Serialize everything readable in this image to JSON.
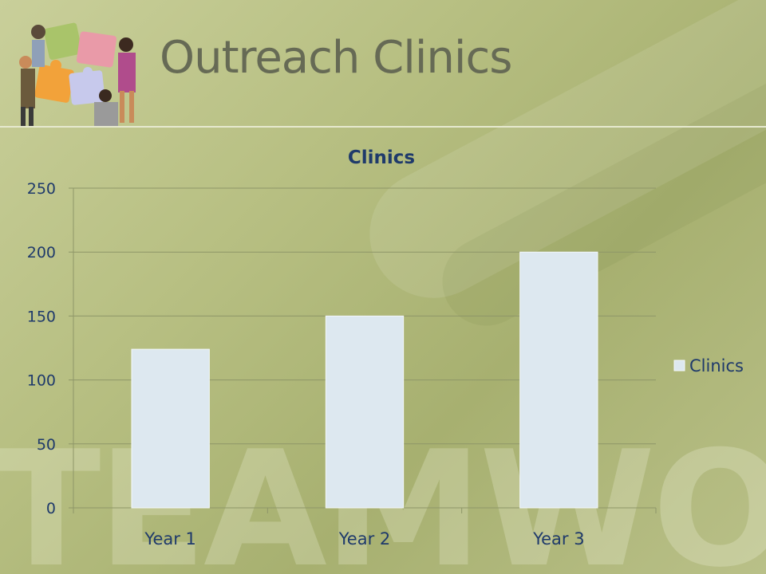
{
  "slide": {
    "title": "Outreach Clinics",
    "watermark": "TEAMWORK",
    "logo_icon": "puzzle-people-icon"
  },
  "chart_data": {
    "type": "bar",
    "title": "Clinics",
    "categories": [
      "Year 1",
      "Year 2",
      "Year 3"
    ],
    "series": [
      {
        "name": "Clinics",
        "values": [
          124,
          150,
          200
        ],
        "color": "#dde8f0"
      }
    ],
    "ylim": [
      0,
      250
    ],
    "yticks": [
      0,
      50,
      100,
      150,
      200,
      250
    ],
    "grid": true,
    "legend": "right",
    "text_color": "#1f3a6b"
  }
}
